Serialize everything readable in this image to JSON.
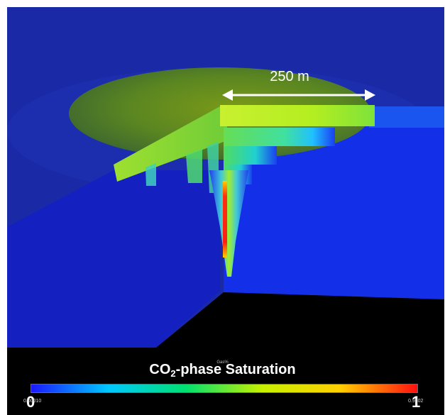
{
  "scale_bar": {
    "label": "250 m"
  },
  "legend": {
    "title_main": "CO",
    "title_sub": "2",
    "title_rest": "-phase Saturation",
    "minor_title": "Gas%",
    "min_label": "0",
    "max_label": "1",
    "min_value_text": "0.00010",
    "max_value_text": "0.9802",
    "colors": [
      "#1a1aff",
      "#00c8ff",
      "#00e070",
      "#c8f000",
      "#ffd000",
      "#ff1010"
    ]
  },
  "scene_colors": {
    "background": "#1a2aa6",
    "aquifer_face": "#1330e0",
    "plume_top": "#8fbf12",
    "plume_core": "#e01010",
    "ground": "#000000"
  }
}
